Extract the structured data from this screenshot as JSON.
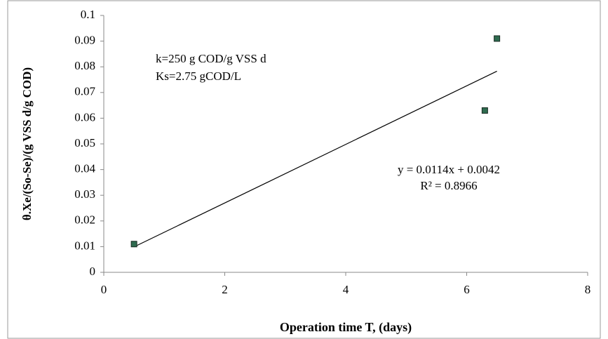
{
  "chart_data": {
    "type": "scatter",
    "xlabel": "Operation time T, (days)",
    "ylabel": "θ.Xe/(So-Se)/(g VSS d/g COD)",
    "annotations": [
      "k=250 g COD/g VSS d",
      "Ks=2.75 gCOD/L"
    ],
    "series": [
      {
        "color": "#2e6b4f",
        "x": [
          0.5,
          6.3,
          6.5
        ],
        "values": [
          0.011,
          0.063,
          0.091
        ]
      }
    ],
    "trendline": {
      "slope": 0.0114,
      "intercept": 0.0042,
      "equation": "y = 0.0114x + 0.0042",
      "r2": "R² = 0.8966"
    },
    "xlim": [
      0,
      8
    ],
    "xticks": [
      0,
      2,
      4,
      6,
      8
    ],
    "ylim": [
      0,
      0.1
    ],
    "yticks": [
      0,
      0.01,
      0.02,
      0.03,
      0.04,
      0.05,
      0.06,
      0.07,
      0.08,
      0.09,
      0.1
    ]
  }
}
